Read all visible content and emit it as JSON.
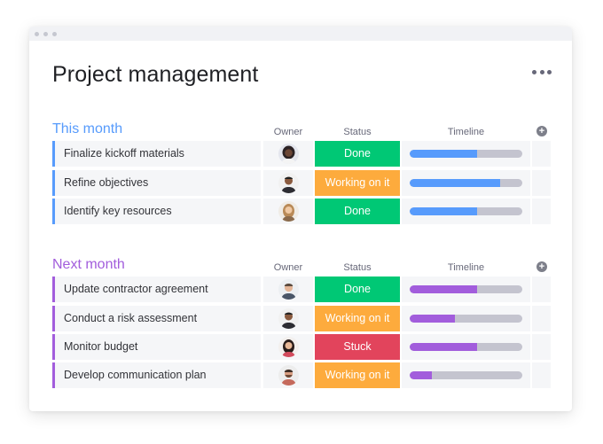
{
  "board": {
    "title": "Project management"
  },
  "columns": {
    "owner": "Owner",
    "status": "Status",
    "timeline": "Timeline",
    "add_icon": "plus-circle-icon",
    "add_symbol": "+"
  },
  "colors": {
    "done": "#00c875",
    "working": "#fdab3d",
    "stuck": "#e2445c",
    "this_month": "#579bfc",
    "next_month": "#a25ddc"
  },
  "groups": [
    {
      "title": "This month",
      "color": "#579bfc",
      "items": [
        {
          "name": "Finalize kickoff materials",
          "status": "Done",
          "status_color": "#00c875",
          "timeline_progress": 0.6,
          "avatar": "avatar-1"
        },
        {
          "name": "Refine objectives",
          "status": "Working on it",
          "status_color": "#fdab3d",
          "timeline_progress": 0.8,
          "avatar": "avatar-2"
        },
        {
          "name": "Identify key resources",
          "status": "Done",
          "status_color": "#00c875",
          "timeline_progress": 0.6,
          "avatar": "avatar-3"
        }
      ]
    },
    {
      "title": "Next month",
      "color": "#a25ddc",
      "items": [
        {
          "name": "Update contractor agreement",
          "status": "Done",
          "status_color": "#00c875",
          "timeline_progress": 0.6,
          "avatar": "avatar-4"
        },
        {
          "name": "Conduct a risk assessment",
          "status": "Working on it",
          "status_color": "#fdab3d",
          "timeline_progress": 0.4,
          "avatar": "avatar-2"
        },
        {
          "name": "Monitor budget",
          "status": "Stuck",
          "status_color": "#e2445c",
          "timeline_progress": 0.6,
          "avatar": "avatar-5"
        },
        {
          "name": "Develop communication plan",
          "status": "Working on it",
          "status_color": "#fdab3d",
          "timeline_progress": 0.2,
          "avatar": "avatar-6"
        }
      ]
    }
  ]
}
